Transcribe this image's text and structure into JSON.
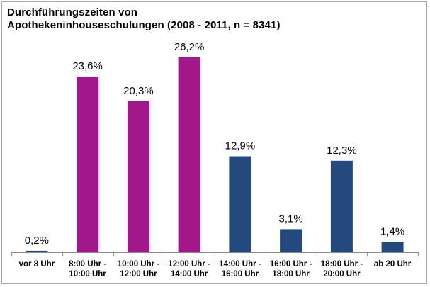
{
  "title": {
    "line1": "Durchführungszeiten von",
    "line2": "Apothekeninhouseschulungen (2008 - 2011, n = 8341)"
  },
  "colors": {
    "magenta": "#a2188a",
    "navy": "#24497e",
    "axis": "#8c8c8c"
  },
  "chart_data": {
    "type": "bar",
    "title": "Durchführungszeiten von Apothekeninhouseschulungen (2008 - 2011, n = 8341)",
    "xlabel": "",
    "ylabel": "",
    "ylim": [
      0,
      28
    ],
    "grid": false,
    "legend": "none",
    "categories": [
      [
        "vor 8 Uhr"
      ],
      [
        "8:00 Uhr -",
        "10:00 Uhr"
      ],
      [
        "10:00 Uhr -",
        "12:00 Uhr"
      ],
      [
        "12:00 Uhr -",
        "14:00 Uhr"
      ],
      [
        "14:00 Uhr -",
        "16:00 Uhr"
      ],
      [
        "16:00 Uhr -",
        "18:00 Uhr"
      ],
      [
        "18:00 Uhr -",
        "20:00 Uhr"
      ],
      [
        "ab 20 Uhr"
      ]
    ],
    "values": [
      0.2,
      23.6,
      20.3,
      26.2,
      12.9,
      3.1,
      12.3,
      1.4
    ],
    "value_labels": [
      "0,2%",
      "23,6%",
      "20,3%",
      "26,2%",
      "12,9%",
      "3,1%",
      "12,3%",
      "1,4%"
    ],
    "bar_colors": [
      "navy",
      "magenta",
      "magenta",
      "magenta",
      "navy",
      "navy",
      "navy",
      "navy"
    ]
  }
}
